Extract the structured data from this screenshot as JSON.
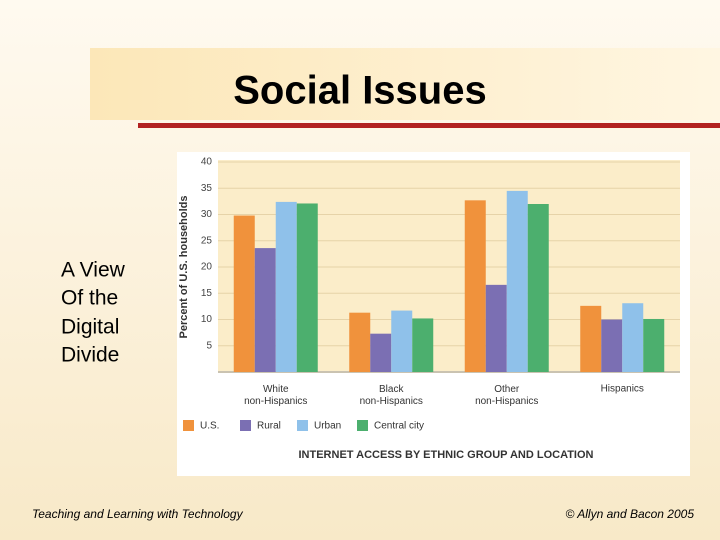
{
  "slide": {
    "title": "Social Issues",
    "side_text": [
      "A View",
      "Of the",
      "Digital",
      "Divide"
    ],
    "footer_left": "Teaching and Learning with Technology",
    "footer_right": "© Allyn and Bacon 2005"
  },
  "chart_data": {
    "type": "bar",
    "title": "INTERNET ACCESS BY ETHNIC GROUP AND LOCATION",
    "y_label": "Percent of U.S. households",
    "categories": [
      "White non-Hispanics",
      "Black non-Hispanics",
      "Other non-Hispanics",
      "Hispanics"
    ],
    "series": [
      {
        "name": "U.S.",
        "color": "#f0923c",
        "values": [
          29.8,
          11.3,
          32.7,
          12.6
        ]
      },
      {
        "name": "Rural",
        "color": "#7b6fb3",
        "values": [
          23.6,
          7.3,
          16.6,
          10.0
        ]
      },
      {
        "name": "Urban",
        "color": "#8fc1ea",
        "values": [
          32.4,
          11.7,
          34.5,
          13.1
        ]
      },
      {
        "name": "Central city",
        "color": "#4caf6e",
        "values": [
          32.1,
          10.2,
          32.0,
          10.1
        ]
      }
    ],
    "ylim": [
      0,
      40
    ],
    "yticks": [
      5,
      10,
      15,
      20,
      25,
      30,
      35,
      40
    ],
    "grid": true
  }
}
